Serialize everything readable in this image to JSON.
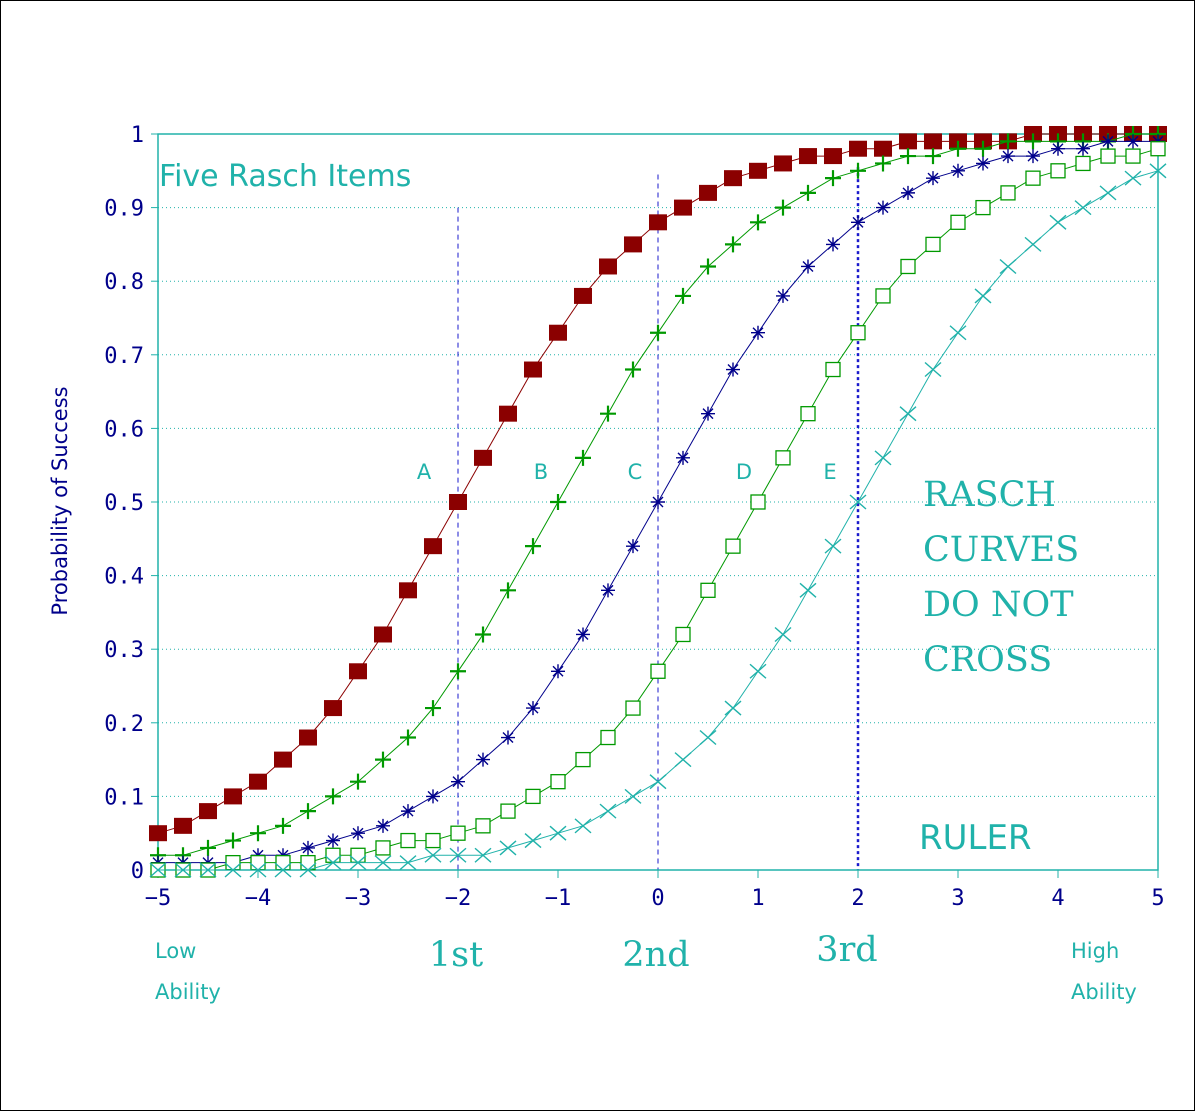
{
  "chart_data": {
    "type": "line",
    "title": "Five Rasch Items",
    "xlabel": "",
    "ylabel": "Probability of Success",
    "xlim": [
      -5,
      5
    ],
    "ylim": [
      0,
      1
    ],
    "x_ticks": [
      "-5",
      "-4",
      "-3",
      "-2",
      "-1",
      "0",
      "1",
      "2",
      "3",
      "4",
      "5"
    ],
    "y_ticks": [
      "0",
      "0.1",
      "0.2",
      "0.3",
      "0.4",
      "0.5",
      "0.6",
      "0.7",
      "0.8",
      "0.9",
      "1"
    ],
    "grid": "horizontal dotted",
    "x": [
      -5,
      -4.75,
      -4.5,
      -4.25,
      -4,
      -3.75,
      -3.5,
      -3.25,
      -3,
      -2.75,
      -2.5,
      -2.25,
      -2,
      -1.75,
      -1.5,
      -1.25,
      -1,
      -0.75,
      -0.5,
      -0.25,
      0,
      0.25,
      0.5,
      0.75,
      1,
      1.25,
      1.5,
      1.75,
      2,
      2.25,
      2.5,
      2.75,
      3,
      3.25,
      3.5,
      3.75,
      4,
      4.25,
      4.5,
      4.75,
      5
    ],
    "series": [
      {
        "name": "A",
        "difficulty": -2,
        "marker": "filled-square",
        "color": "#8b0000",
        "values": [
          0.05,
          0.06,
          0.08,
          0.1,
          0.12,
          0.15,
          0.18,
          0.22,
          0.27,
          0.32,
          0.38,
          0.44,
          0.5,
          0.56,
          0.62,
          0.68,
          0.73,
          0.78,
          0.82,
          0.85,
          0.88,
          0.9,
          0.92,
          0.94,
          0.95,
          0.96,
          0.97,
          0.97,
          0.98,
          0.98,
          0.99,
          0.99,
          0.99,
          0.99,
          0.99,
          1.0,
          1.0,
          1.0,
          1.0,
          1.0,
          1.0
        ]
      },
      {
        "name": "B",
        "difficulty": -1,
        "marker": "plus",
        "color": "#009900",
        "values": [
          0.02,
          0.02,
          0.03,
          0.04,
          0.05,
          0.06,
          0.08,
          0.1,
          0.12,
          0.15,
          0.18,
          0.22,
          0.27,
          0.32,
          0.38,
          0.44,
          0.5,
          0.56,
          0.62,
          0.68,
          0.73,
          0.78,
          0.82,
          0.85,
          0.88,
          0.9,
          0.92,
          0.94,
          0.95,
          0.96,
          0.97,
          0.97,
          0.98,
          0.98,
          0.99,
          0.99,
          0.99,
          0.99,
          0.99,
          1.0,
          1.0
        ]
      },
      {
        "name": "C",
        "difficulty": 0,
        "marker": "asterisk",
        "color": "#00008b",
        "values": [
          0.01,
          0.01,
          0.01,
          0.01,
          0.02,
          0.02,
          0.03,
          0.04,
          0.05,
          0.06,
          0.08,
          0.1,
          0.12,
          0.15,
          0.18,
          0.22,
          0.27,
          0.32,
          0.38,
          0.44,
          0.5,
          0.56,
          0.62,
          0.68,
          0.73,
          0.78,
          0.82,
          0.85,
          0.88,
          0.9,
          0.92,
          0.94,
          0.95,
          0.96,
          0.97,
          0.97,
          0.98,
          0.98,
          0.99,
          0.99,
          0.99
        ]
      },
      {
        "name": "D",
        "difficulty": 1,
        "marker": "open-square",
        "color": "#009900",
        "values": [
          0.0,
          0.0,
          0.0,
          0.01,
          0.01,
          0.01,
          0.01,
          0.02,
          0.02,
          0.03,
          0.04,
          0.04,
          0.05,
          0.06,
          0.08,
          0.1,
          0.12,
          0.15,
          0.18,
          0.22,
          0.27,
          0.32,
          0.38,
          0.44,
          0.5,
          0.56,
          0.62,
          0.68,
          0.73,
          0.78,
          0.82,
          0.85,
          0.88,
          0.9,
          0.92,
          0.94,
          0.95,
          0.96,
          0.97,
          0.97,
          0.98
        ]
      },
      {
        "name": "E",
        "difficulty": 2,
        "marker": "x",
        "color": "#20b2aa",
        "values": [
          0.0,
          0.0,
          0.0,
          0.0,
          0.0,
          0.0,
          0.0,
          0.01,
          0.01,
          0.01,
          0.01,
          0.02,
          0.02,
          0.02,
          0.03,
          0.04,
          0.05,
          0.06,
          0.08,
          0.1,
          0.12,
          0.15,
          0.18,
          0.22,
          0.27,
          0.32,
          0.38,
          0.44,
          0.5,
          0.56,
          0.62,
          0.68,
          0.73,
          0.78,
          0.82,
          0.85,
          0.88,
          0.9,
          0.92,
          0.94,
          0.95
        ]
      }
    ],
    "vertical_lines": [
      {
        "x": -2,
        "style": "dashed",
        "label": "1st"
      },
      {
        "x": 0,
        "style": "dashed",
        "label": "2nd"
      },
      {
        "x": 2,
        "style": "dotted",
        "label": "3rd"
      }
    ],
    "annotations": {
      "note_lines": [
        "RASCH",
        "CURVES",
        "DO NOT",
        "CROSS"
      ],
      "ruler": "RULER",
      "low_end": [
        "Low",
        "Ability"
      ],
      "high_end": [
        "High",
        "Ability"
      ]
    },
    "colors": {
      "axis": "#20b2aa",
      "tick_text": "#00008b",
      "annotation": "#20b2aa",
      "grid": "#20b2aa",
      "ruler_lines": "#1a1acd"
    }
  }
}
